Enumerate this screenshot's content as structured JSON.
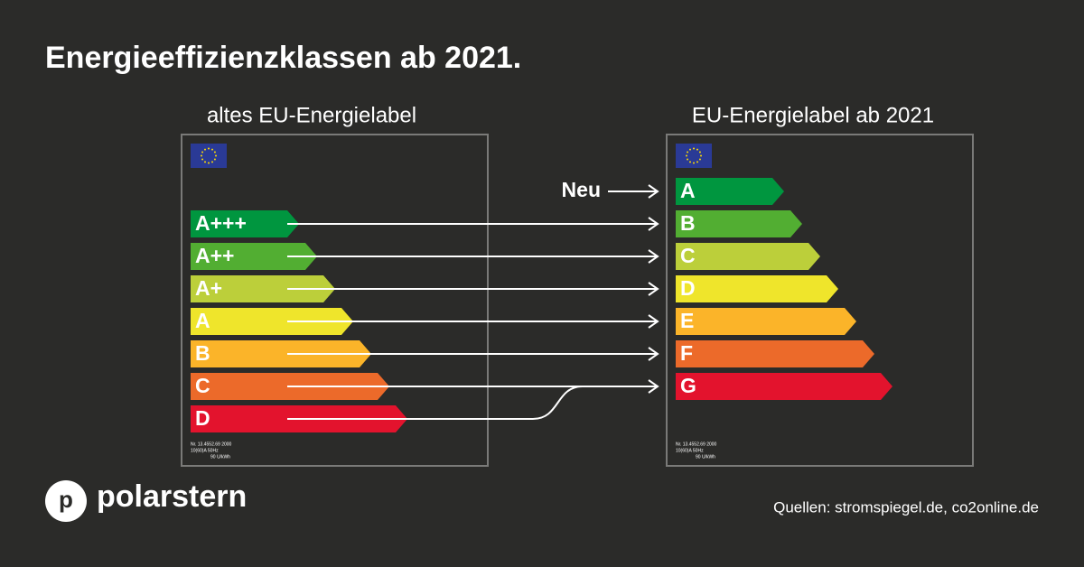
{
  "header": {
    "title": "Energieeffizienzklassen ab 2021."
  },
  "labels": [
    {
      "heading": "altes EU-Energielabel",
      "classes": [
        "A+++",
        "A++",
        "A+",
        "A",
        "B",
        "C",
        "D"
      ],
      "fine_print": [
        "Nr. 13.4552.69 2000",
        "10(60)A       50Hz",
        "90 U/kWh"
      ]
    },
    {
      "heading": "EU-Energielabel ab 2021",
      "classes": [
        "A",
        "B",
        "C",
        "D",
        "E",
        "F",
        "G"
      ],
      "fine_print": [
        "Nr. 13.4552.69 2000",
        "10(60)A       50Hz",
        "90 U/kWh"
      ]
    }
  ],
  "annotation": "Neu",
  "logo": {
    "initial": "p",
    "name": "polarstern"
  },
  "source": "Quellen: stromspiegel.de, co2online.de"
}
